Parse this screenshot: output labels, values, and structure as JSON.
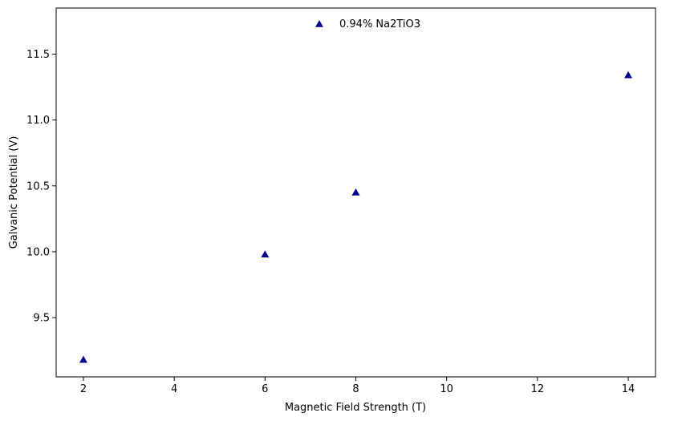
{
  "chart_data": {
    "type": "scatter",
    "title": "",
    "xlabel": "Magnetic Field Strength (T)",
    "ylabel": "Galvanic Potential (V)",
    "xlim": [
      1.4,
      14.6
    ],
    "ylim": [
      9.05,
      11.85
    ],
    "xticks": [
      "2",
      "4",
      "6",
      "8",
      "10",
      "12",
      "14"
    ],
    "yticks": [
      "9.5",
      "10.0",
      "10.5",
      "11.0",
      "11.5"
    ],
    "grid": false,
    "legend_position": "top-center",
    "series": [
      {
        "name": "0.94% Na2TiO3",
        "marker": "triangle-up",
        "color": "#00008b",
        "x": [
          2,
          6,
          8,
          14
        ],
        "y": [
          9.18,
          9.98,
          10.45,
          11.34
        ]
      }
    ]
  }
}
